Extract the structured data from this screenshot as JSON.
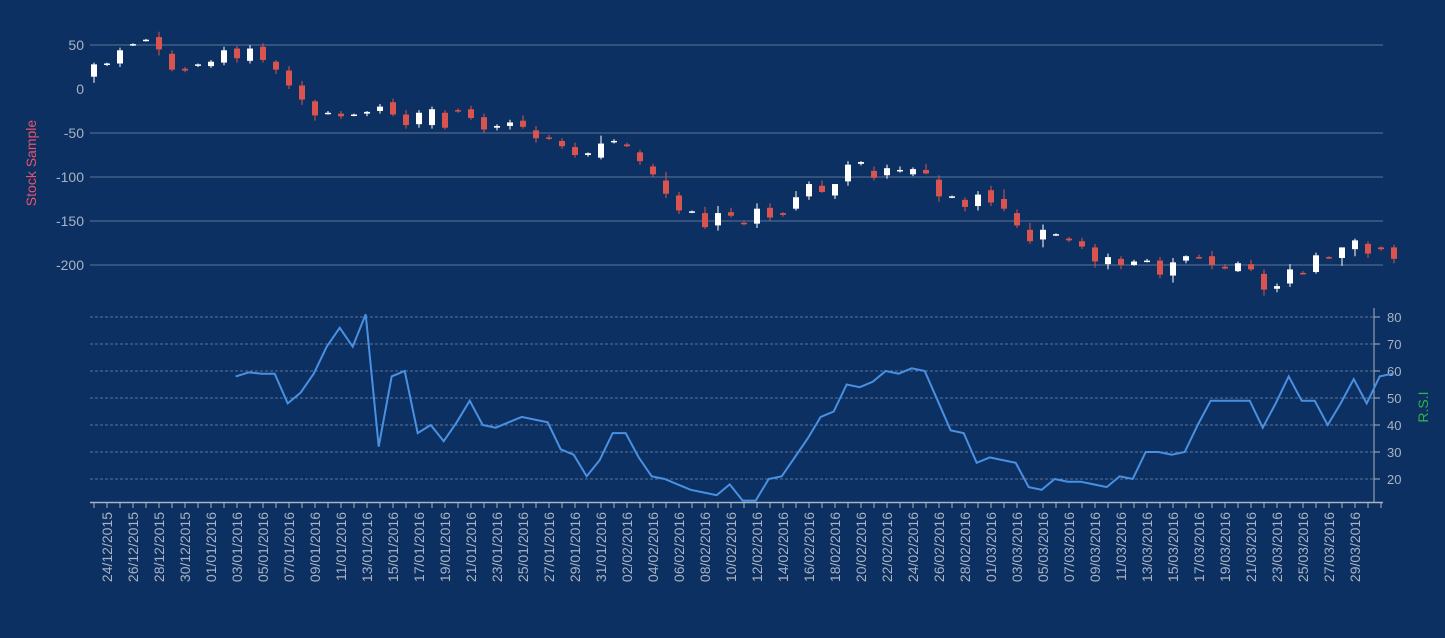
{
  "colors": {
    "background": "#0b3061",
    "grid": "#6f86a8",
    "axis": "#a9b3c4",
    "up_candle": "#ffffff",
    "down_candle": "#d9534f",
    "rsi_line": "#4a90e2",
    "price_label": "#e9546b",
    "rsi_label": "#2eb24a"
  },
  "chart_data": [
    {
      "type": "candlestick",
      "ylabel": "Stock Sample",
      "ylim": [
        -220,
        62
      ],
      "yticks": [
        50,
        0,
        -50,
        -100,
        -150,
        -200
      ],
      "grid": true,
      "xlabels": [
        "24/12/2015",
        "26/12/2015",
        "28/12/2015",
        "30/12/2015",
        "01/01/2016",
        "03/01/2016",
        "05/01/2016",
        "07/01/2016",
        "09/01/2016",
        "11/01/2016",
        "13/01/2016",
        "15/01/2016",
        "17/01/2016",
        "19/01/2016",
        "21/01/2016",
        "23/01/2016",
        "25/01/2016",
        "27/01/2016",
        "29/01/2016",
        "31/01/2016",
        "02/02/2016",
        "04/02/2016",
        "06/02/2016",
        "08/02/2016",
        "10/02/2016",
        "12/02/2016",
        "14/02/2016",
        "16/02/2016",
        "18/02/2016",
        "20/02/2016",
        "22/02/2016",
        "24/02/2016",
        "26/02/2016",
        "28/02/2016",
        "01/03/2016",
        "03/03/2016",
        "05/03/2016",
        "07/03/2016",
        "09/03/2016",
        "11/03/2016",
        "13/03/2016",
        "15/03/2016",
        "17/03/2016",
        "19/03/2016",
        "21/03/2016",
        "23/03/2016",
        "25/03/2016",
        "27/03/2016",
        "29/03/2016"
      ],
      "start_date": "23/12/2015",
      "candles": [
        [
          14,
          30,
          7,
          28
        ],
        [
          28,
          30,
          26,
          29
        ],
        [
          29,
          47,
          25,
          44
        ],
        [
          50,
          52,
          49,
          51
        ],
        [
          55,
          57,
          54,
          56
        ],
        [
          59,
          65,
          38,
          45
        ],
        [
          40,
          44,
          20,
          22
        ],
        [
          23,
          25,
          19,
          21
        ],
        [
          27,
          29,
          25,
          28
        ],
        [
          26,
          33,
          24,
          31
        ],
        [
          30,
          48,
          27,
          44
        ],
        [
          46,
          49,
          30,
          35
        ],
        [
          32,
          50,
          29,
          46
        ],
        [
          48,
          52,
          30,
          33
        ],
        [
          31,
          33,
          17,
          22
        ],
        [
          21,
          26,
          0,
          4
        ],
        [
          4,
          9,
          -18,
          -12
        ],
        [
          -14,
          -12,
          -36,
          -30
        ],
        [
          -27,
          -25,
          -29,
          -27
        ],
        [
          -28,
          -25,
          -34,
          -31
        ],
        [
          -30,
          -28,
          -31,
          -29
        ],
        [
          -28,
          -25,
          -31,
          -26
        ],
        [
          -25,
          -17,
          -28,
          -20
        ],
        [
          -15,
          -11,
          -31,
          -29
        ],
        [
          -29,
          -24,
          -45,
          -41
        ],
        [
          -40,
          -24,
          -44,
          -27
        ],
        [
          -41,
          -20,
          -45,
          -23
        ],
        [
          -27,
          -24,
          -46,
          -44
        ],
        [
          -24,
          -22,
          -27,
          -25
        ],
        [
          -23,
          -19,
          -35,
          -33
        ],
        [
          -32,
          -28,
          -50,
          -46
        ],
        [
          -44,
          -40,
          -47,
          -42
        ],
        [
          -42,
          -35,
          -46,
          -38
        ],
        [
          -36,
          -30,
          -45,
          -43
        ],
        [
          -47,
          -42,
          -61,
          -56
        ],
        [
          -55,
          -52,
          -58,
          -56
        ],
        [
          -59,
          -56,
          -68,
          -65
        ],
        [
          -66,
          -61,
          -78,
          -75
        ],
        [
          -75,
          -72,
          -77,
          -73
        ],
        [
          -78,
          -53,
          -80,
          -62
        ],
        [
          -60,
          -57,
          -62,
          -59
        ],
        [
          -63,
          -61,
          -66,
          -65
        ],
        [
          -72,
          -69,
          -86,
          -82
        ],
        [
          -88,
          -85,
          -100,
          -97
        ],
        [
          -104,
          -94,
          -124,
          -119
        ],
        [
          -121,
          -117,
          -142,
          -138
        ],
        [
          -140,
          -138,
          -141,
          -139
        ],
        [
          -141,
          -134,
          -159,
          -157
        ],
        [
          -155,
          -133,
          -161,
          -141
        ],
        [
          -140,
          -135,
          -146,
          -144
        ],
        [
          -152,
          -150,
          -155,
          -153
        ],
        [
          -153,
          -130,
          -158,
          -136
        ],
        [
          -135,
          -130,
          -150,
          -146
        ],
        [
          -141,
          -140,
          -145,
          -143
        ],
        [
          -136,
          -116,
          -138,
          -123
        ],
        [
          -122,
          -105,
          -126,
          -108
        ],
        [
          -110,
          -104,
          -118,
          -117
        ],
        [
          -121,
          -110,
          -125,
          -108
        ],
        [
          -105,
          -82,
          -110,
          -86
        ],
        [
          -85,
          -82,
          -87,
          -83
        ],
        [
          -93,
          -88,
          -104,
          -101
        ],
        [
          -98,
          -86,
          -102,
          -90
        ],
        [
          -92,
          -88,
          -95,
          -92
        ],
        [
          -97,
          -89,
          -99,
          -91
        ],
        [
          -92,
          -85,
          -97,
          -96
        ],
        [
          -103,
          -98,
          -128,
          -122
        ],
        [
          -123,
          -121,
          -124,
          -122
        ],
        [
          -126,
          -123,
          -139,
          -134
        ],
        [
          -133,
          -116,
          -138,
          -120
        ],
        [
          -115,
          -110,
          -133,
          -129
        ],
        [
          -125,
          -114,
          -139,
          -136
        ],
        [
          -141,
          -137,
          -158,
          -155
        ],
        [
          -160,
          -152,
          -176,
          -173
        ],
        [
          -171,
          -154,
          -180,
          -160
        ],
        [
          -166,
          -164,
          -167,
          -165
        ],
        [
          -170,
          -168,
          -174,
          -172
        ],
        [
          -173,
          -169,
          -182,
          -179
        ],
        [
          -180,
          -176,
          -203,
          -196
        ],
        [
          -199,
          -187,
          -205,
          -191
        ],
        [
          -193,
          -190,
          -205,
          -200
        ],
        [
          -200,
          -194,
          -201,
          -196
        ],
        [
          -196,
          -193,
          -197,
          -195
        ],
        [
          -195,
          -191,
          -215,
          -211
        ],
        [
          -212,
          -192,
          -220,
          -197
        ],
        [
          -195,
          -189,
          -198,
          -190
        ],
        [
          -191,
          -188,
          -193,
          -192
        ],
        [
          -190,
          -184,
          -205,
          -200
        ],
        [
          -202,
          -199,
          -205,
          -204
        ],
        [
          -207,
          -196,
          -208,
          -198
        ],
        [
          -199,
          -194,
          -207,
          -205
        ],
        [
          -210,
          -205,
          -235,
          -228
        ],
        [
          -227,
          -221,
          -231,
          -224
        ],
        [
          -221,
          -199,
          -225,
          -205
        ],
        [
          -209,
          -207,
          -211,
          -210
        ],
        [
          -208,
          -186,
          -210,
          -189
        ],
        [
          -191,
          -190,
          -193,
          -192
        ],
        [
          -192,
          -180,
          -201,
          -180
        ],
        [
          -182,
          -170,
          -190,
          -172
        ],
        [
          -176,
          -173,
          -192,
          -187
        ],
        [
          -180,
          -179,
          -184,
          -182
        ],
        [
          -180,
          -177,
          -198,
          -193
        ]
      ]
    },
    {
      "type": "line",
      "ylabel": "R.S.I",
      "ylim": [
        12,
        82
      ],
      "yticks": [
        80,
        70,
        60,
        50,
        40,
        30,
        20
      ],
      "grid": true,
      "series": [
        {
          "values": [
            null,
            null,
            null,
            null,
            null,
            null,
            null,
            null,
            null,
            null,
            58,
            59.5,
            59,
            59,
            48,
            52,
            59,
            69,
            76,
            69,
            81,
            32,
            58,
            60,
            37,
            40,
            34,
            41,
            49,
            40,
            39,
            41,
            43,
            42,
            41,
            31,
            29,
            21,
            27,
            37,
            37,
            28,
            21,
            20,
            18,
            16,
            15,
            14,
            18,
            12,
            12,
            20,
            21,
            28,
            35,
            43,
            45,
            55,
            54,
            56,
            60,
            59,
            61,
            60,
            49,
            38,
            37,
            26,
            28,
            27,
            26,
            17,
            16,
            20,
            19,
            19,
            18,
            17,
            21,
            20,
            30,
            30,
            29,
            30,
            40,
            49,
            49,
            49,
            49,
            39,
            48,
            58,
            49,
            49,
            40,
            48,
            57,
            48,
            58,
            59
          ]
        }
      ]
    }
  ]
}
